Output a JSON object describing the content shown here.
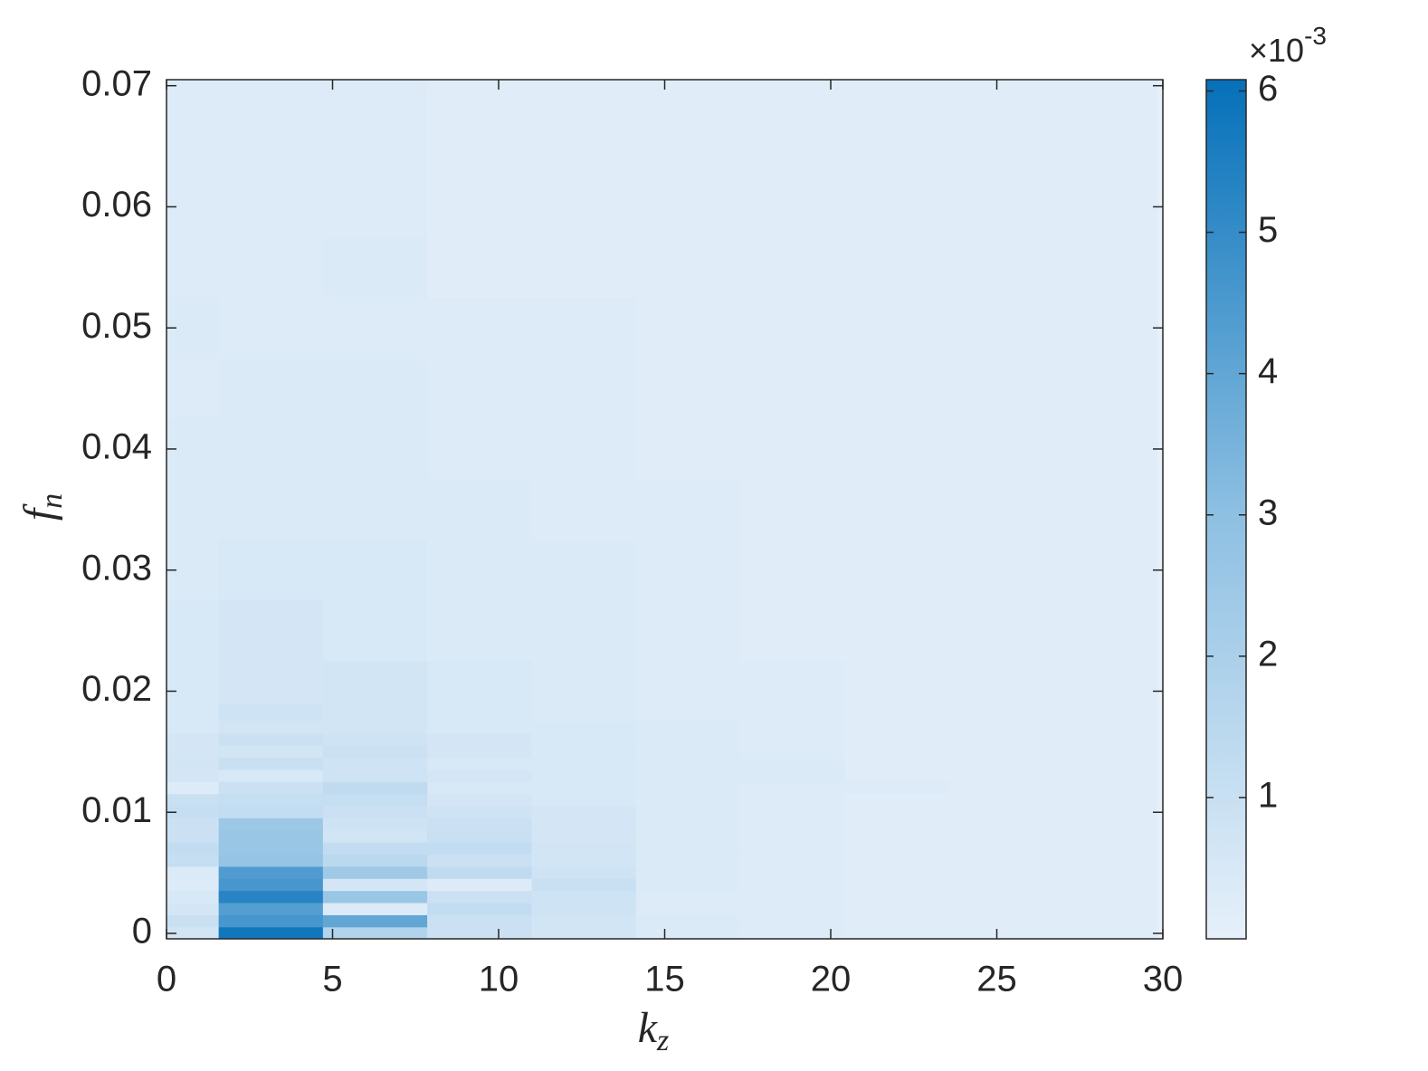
{
  "chart_data": {
    "type": "heatmap",
    "xlabel": {
      "base": "k",
      "sub": "z"
    },
    "ylabel": {
      "base": "f",
      "sub": "n"
    },
    "xlim": [
      0,
      30
    ],
    "ylim": [
      -0.00045,
      0.0705
    ],
    "xticks": [
      0,
      5,
      10,
      15,
      20,
      25,
      30
    ],
    "yticks": [
      0,
      0.01,
      0.02,
      0.03,
      0.04,
      0.05,
      0.06,
      0.07
    ],
    "x": [
      0,
      3.14,
      6.28,
      9.42,
      12.57,
      15.71,
      18.85,
      21.99,
      25.13,
      28.27
    ],
    "y": [
      0,
      0.001,
      0.002,
      0.003,
      0.004,
      0.005,
      0.006,
      0.007,
      0.008,
      0.009,
      0.01,
      0.011,
      0.012,
      0.013,
      0.014,
      0.015,
      0.016,
      0.017,
      0.018,
      0.02,
      0.025,
      0.03,
      0.035,
      0.04,
      0.045,
      0.05,
      0.055,
      0.06,
      0.065,
      0.07
    ],
    "z": [
      [
        0.0007,
        0.0058,
        0.0018,
        0.0009,
        0.0007,
        0.0004,
        0.0003,
        0.0002,
        0.0002,
        0.0002
      ],
      [
        0.001,
        0.0046,
        0.004,
        0.0009,
        0.0007,
        0.0004,
        0.0003,
        0.0002,
        0.0002,
        0.0002
      ],
      [
        0.0006,
        0.0043,
        0.0003,
        0.0012,
        0.0008,
        0.0003,
        0.0003,
        0.0002,
        0.0002,
        0.0002
      ],
      [
        0.0005,
        0.0053,
        0.0026,
        0.0009,
        0.0008,
        0.0003,
        0.0003,
        0.0002,
        0.0002,
        0.0002
      ],
      [
        0.0003,
        0.0046,
        0.0006,
        0.0003,
        0.001,
        0.0004,
        0.0003,
        0.0002,
        0.0002,
        0.0002
      ],
      [
        0.0004,
        0.0044,
        0.0024,
        0.0013,
        0.0008,
        0.0004,
        0.0003,
        0.0002,
        0.0002,
        0.0002
      ],
      [
        0.0011,
        0.0027,
        0.0015,
        0.0009,
        0.0007,
        0.0004,
        0.0003,
        0.0002,
        0.0002,
        0.0002
      ],
      [
        0.0012,
        0.0026,
        0.0012,
        0.0012,
        0.0007,
        0.0004,
        0.0003,
        0.0002,
        0.0002,
        0.0002
      ],
      [
        0.0009,
        0.0026,
        0.0007,
        0.001,
        0.0006,
        0.0004,
        0.0003,
        0.0002,
        0.0002,
        0.0002
      ],
      [
        0.0009,
        0.0025,
        0.0008,
        0.0009,
        0.0006,
        0.0004,
        0.0003,
        0.0002,
        0.0002,
        0.0002
      ],
      [
        0.0011,
        0.0012,
        0.0009,
        0.0008,
        0.0006,
        0.0004,
        0.0003,
        0.0002,
        0.0002,
        0.0002
      ],
      [
        0.001,
        0.0011,
        0.0011,
        0.0006,
        0.0005,
        0.0004,
        0.0003,
        0.0002,
        0.0002,
        0.0002
      ],
      [
        0.0003,
        0.0009,
        0.0013,
        0.0005,
        0.0005,
        0.0004,
        0.0003,
        0.0003,
        0.0002,
        0.0002
      ],
      [
        0.0006,
        0.0005,
        0.0008,
        0.0006,
        0.0005,
        0.0004,
        0.0004,
        0.0002,
        0.0002,
        0.0002
      ],
      [
        0.0007,
        0.001,
        0.0008,
        0.0005,
        0.0005,
        0.0004,
        0.0004,
        0.0002,
        0.0002,
        0.0002
      ],
      [
        0.0006,
        0.0007,
        0.0009,
        0.0006,
        0.0005,
        0.0004,
        0.0003,
        0.0002,
        0.0002,
        0.0002
      ],
      [
        0.0006,
        0.0009,
        0.0008,
        0.0006,
        0.0005,
        0.0004,
        0.0003,
        0.0002,
        0.0002,
        0.0002
      ],
      [
        0.0005,
        0.0007,
        0.0007,
        0.0005,
        0.0005,
        0.0004,
        0.0003,
        0.0002,
        0.0002,
        0.0002
      ],
      [
        0.0005,
        0.0008,
        0.0007,
        0.0005,
        0.0004,
        0.0003,
        0.0003,
        0.0002,
        0.0002,
        0.0002
      ],
      [
        0.0005,
        0.0006,
        0.0007,
        0.0005,
        0.0004,
        0.0003,
        0.0003,
        0.0002,
        0.0002,
        0.0002
      ],
      [
        0.0005,
        0.0006,
        0.0005,
        0.0004,
        0.0004,
        0.0003,
        0.0002,
        0.0002,
        0.0002,
        0.0002
      ],
      [
        0.0004,
        0.0005,
        0.0005,
        0.0004,
        0.0004,
        0.0003,
        0.0002,
        0.0002,
        0.0002,
        0.0002
      ],
      [
        0.0004,
        0.0004,
        0.0004,
        0.0004,
        0.0003,
        0.0003,
        0.0002,
        0.0002,
        0.0002,
        0.0002
      ],
      [
        0.0004,
        0.0004,
        0.0004,
        0.0003,
        0.0003,
        0.0002,
        0.0002,
        0.0002,
        0.0002,
        0.0002
      ],
      [
        0.0003,
        0.0004,
        0.0004,
        0.0003,
        0.0003,
        0.0002,
        0.0002,
        0.0002,
        0.0002,
        0.0002
      ],
      [
        0.0004,
        0.0003,
        0.0003,
        0.0003,
        0.0003,
        0.0002,
        0.0002,
        0.0002,
        0.0002,
        0.0002
      ],
      [
        0.0003,
        0.0003,
        0.0004,
        0.0002,
        0.0002,
        0.0002,
        0.0002,
        0.0002,
        0.0002,
        0.0002
      ],
      [
        0.0003,
        0.0003,
        0.0003,
        0.0002,
        0.0002,
        0.0002,
        0.0002,
        0.0002,
        0.0002,
        0.0002
      ],
      [
        0.0003,
        0.0003,
        0.0003,
        0.0002,
        0.0002,
        0.0002,
        0.0002,
        0.0002,
        0.0002,
        0.0002
      ],
      [
        0.0003,
        0.0003,
        0.0003,
        0.0002,
        0.0002,
        0.0002,
        0.0002,
        0.0002,
        0.0002,
        0.0002
      ]
    ],
    "colormap": [
      "#e6f0fa",
      "#8cbfe2",
      "#0570b9"
    ],
    "clim": [
      0,
      0.00608
    ],
    "colorbar_ticks": [
      {
        "value": 0.001,
        "label": "1"
      },
      {
        "value": 0.002,
        "label": "2"
      },
      {
        "value": 0.003,
        "label": "3"
      },
      {
        "value": 0.004,
        "label": "4"
      },
      {
        "value": 0.005,
        "label": "5"
      },
      {
        "value": 0.006,
        "label": "6"
      }
    ],
    "colorbar_exponent": {
      "base": "×10",
      "power": "-3"
    }
  }
}
